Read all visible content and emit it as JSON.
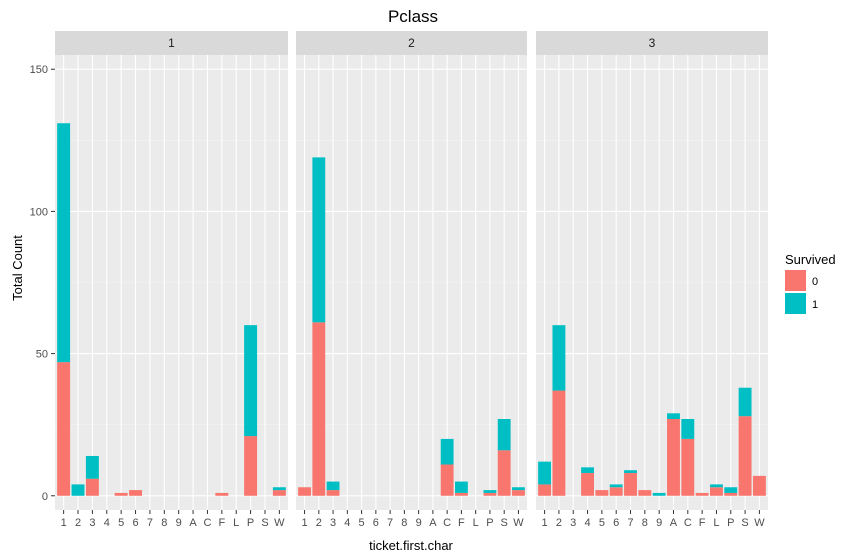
{
  "chart_data": {
    "type": "bar",
    "stacked": true,
    "title": "Pclass",
    "xlabel": "ticket.first.char",
    "ylabel": "Total Count",
    "ylim": [
      -5,
      155
    ],
    "yticks": [
      0,
      50,
      100,
      150
    ],
    "categories": [
      "1",
      "2",
      "3",
      "4",
      "5",
      "6",
      "7",
      "8",
      "9",
      "A",
      "C",
      "F",
      "L",
      "P",
      "S",
      "W"
    ],
    "legend": {
      "title": "Survived",
      "position": "right",
      "entries": [
        {
          "label": "0",
          "color": "#F8766D"
        },
        {
          "label": "1",
          "color": "#00BFC4"
        }
      ]
    },
    "facets": [
      {
        "label": "1",
        "series": [
          {
            "key": "0",
            "values": [
              47,
              0,
              6,
              0,
              1,
              2,
              0,
              0,
              0,
              0,
              0,
              1,
              0,
              21,
              0,
              2
            ]
          },
          {
            "key": "1",
            "values": [
              84,
              4,
              8,
              0,
              0,
              0,
              0,
              0,
              0,
              0,
              0,
              0,
              0,
              39,
              0,
              1
            ]
          }
        ]
      },
      {
        "label": "2",
        "series": [
          {
            "key": "0",
            "values": [
              3,
              61,
              2,
              0,
              0,
              0,
              0,
              0,
              0,
              0,
              11,
              1,
              0,
              1,
              16,
              2
            ]
          },
          {
            "key": "1",
            "values": [
              0,
              58,
              3,
              0,
              0,
              0,
              0,
              0,
              0,
              0,
              9,
              4,
              0,
              1,
              11,
              1
            ]
          }
        ]
      },
      {
        "label": "3",
        "series": [
          {
            "key": "0",
            "values": [
              4,
              37,
              0,
              8,
              2,
              3,
              8,
              2,
              0,
              27,
              20,
              1,
              3,
              1,
              28,
              7
            ]
          },
          {
            "key": "1",
            "values": [
              8,
              23,
              0,
              2,
              0,
              1,
              1,
              0,
              1,
              2,
              7,
              0,
              1,
              2,
              10,
              0
            ]
          }
        ]
      }
    ]
  }
}
